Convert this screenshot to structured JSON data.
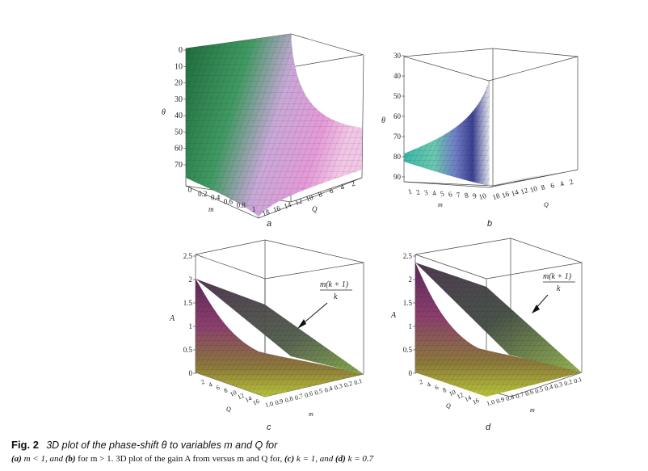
{
  "figure": {
    "label": "Fig. 2",
    "title": "3D plot of the phase-shift θ to variables m and Q for",
    "description": {
      "part_a": "(a)",
      "part_a_cond": "m < 1, and",
      "part_b": "(b)",
      "part_b_cond": "for m > 1. 3D plot of the gain A from versus m and Q for,",
      "part_c": "(c)",
      "part_c_cond": "k = 1, and",
      "part_d": "(d)",
      "part_d_cond": "k = 0.7"
    }
  },
  "panels": {
    "a": {
      "sublabel": "a",
      "zlabel": "θ",
      "xlabel": "m",
      "ylabel": "Q",
      "zticks": [
        "0",
        "10",
        "20",
        "30",
        "40",
        "50",
        "60",
        "70"
      ],
      "mticks": [
        "0",
        "0.2",
        "0.4",
        "0.6",
        "0.8",
        "1"
      ],
      "qticks": [
        "18",
        "16",
        "14",
        "12",
        "10",
        "8",
        "6",
        "4",
        "2"
      ]
    },
    "b": {
      "sublabel": "b",
      "zlabel": "θ",
      "xlabel": "m",
      "ylabel": "Q",
      "zticks": [
        "30",
        "40",
        "50",
        "60",
        "70",
        "80",
        "90"
      ],
      "mticks": [
        "1",
        "2",
        "3",
        "4",
        "5",
        "6",
        "7",
        "8",
        "9",
        "10"
      ],
      "qticks": [
        "18",
        "16",
        "14",
        "12",
        "10",
        "8",
        "6",
        "4",
        "2"
      ]
    },
    "c": {
      "sublabel": "c",
      "zlabel": "A",
      "xlabel": "m",
      "ylabel": "Q",
      "zticks": [
        "0",
        "0.5",
        "1",
        "1.5",
        "2",
        "2.5"
      ],
      "qticks": [
        "2",
        "4",
        "6",
        "8",
        "10",
        "12",
        "14",
        "16"
      ],
      "mticks": [
        "1.0",
        "0.9",
        "0.8",
        "0.7",
        "0.6",
        "0.5",
        "0.4",
        "0.3",
        "0.2",
        "0.1"
      ],
      "annotation_num": "m(k + 1)",
      "annotation_den": "k"
    },
    "d": {
      "sublabel": "d",
      "zlabel": "A",
      "xlabel": "m",
      "ylabel": "Q",
      "zticks": [
        "0",
        "0.5",
        "1",
        "1.5",
        "2",
        "2.5"
      ],
      "qticks": [
        "2",
        "4",
        "6",
        "8",
        "10",
        "12",
        "14",
        "16"
      ],
      "mticks": [
        "1.0",
        "0.9",
        "0.8",
        "0.7",
        "0.6",
        "0.5",
        "0.4",
        "0.3",
        "0.2",
        "0.1"
      ],
      "annotation_num": "m(k + 1)",
      "annotation_den": "k"
    }
  }
}
